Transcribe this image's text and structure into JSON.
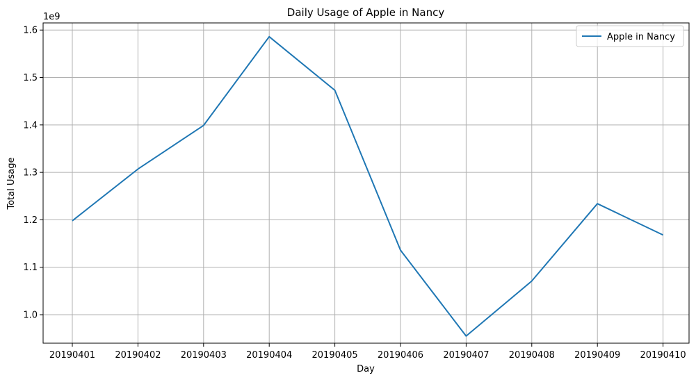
{
  "chart_data": {
    "type": "line",
    "title": "Daily Usage of Apple in Nancy",
    "xlabel": "Day",
    "ylabel": "Total Usage",
    "y_offset_label": "1e9",
    "categories": [
      "20190401",
      "20190402",
      "20190403",
      "20190404",
      "20190405",
      "20190406",
      "20190407",
      "20190408",
      "20190409",
      "20190410"
    ],
    "series": [
      {
        "name": "Apple in Nancy",
        "color": "#1f77b4",
        "values": [
          1.198,
          1.307,
          1.399,
          1.586,
          1.473,
          1.136,
          0.955,
          1.071,
          1.234,
          1.168
        ]
      }
    ],
    "ylim": [
      0.94,
      1.615
    ],
    "yticks": [
      1.0,
      1.1,
      1.2,
      1.3,
      1.4,
      1.5,
      1.6
    ],
    "ytick_labels": [
      "1.0",
      "1.1",
      "1.2",
      "1.3",
      "1.4",
      "1.5",
      "1.6"
    ],
    "grid": true,
    "legend_position": "top-right"
  }
}
